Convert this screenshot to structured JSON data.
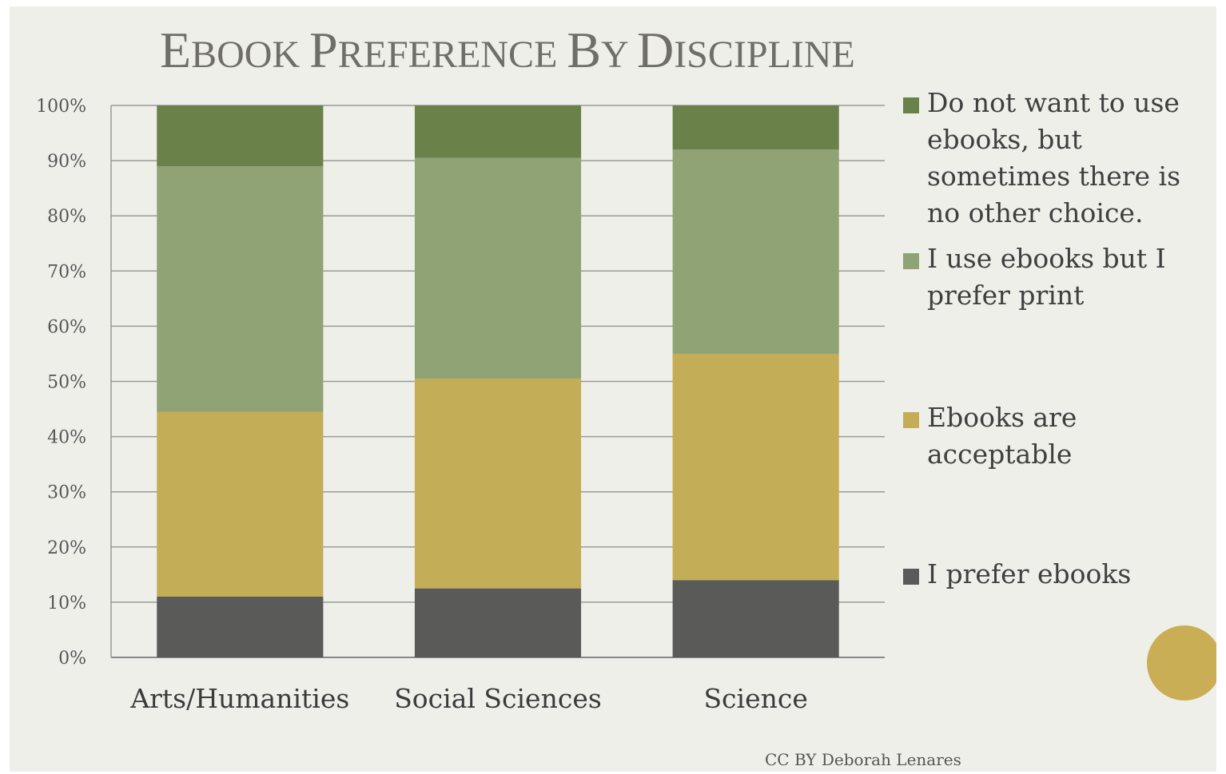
{
  "chart_data": {
    "type": "bar",
    "stacked": true,
    "title": "Ebook Preference by Discipline",
    "categories": [
      "Arts/Humanities",
      "Social Sciences",
      "Science"
    ],
    "y_ticks": [
      "0%",
      "10%",
      "20%",
      "30%",
      "40%",
      "50%",
      "60%",
      "70%",
      "80%",
      "90%",
      "100%"
    ],
    "ylim": [
      0,
      100
    ],
    "grid": true,
    "legend_position": "right",
    "series": [
      {
        "name": "I prefer ebooks",
        "color": "#5a5a58",
        "values": [
          11,
          12.5,
          14
        ]
      },
      {
        "name": "Ebooks are acceptable",
        "color": "#c4ad57",
        "values": [
          33.5,
          38,
          41
        ]
      },
      {
        "name": "I use ebooks but I prefer print",
        "color": "#8fa374",
        "values": [
          44.5,
          40,
          37
        ]
      },
      {
        "name": "Do not want to use ebooks, but sometimes there is no other choice.",
        "color": "#6a8149",
        "values": [
          11,
          9.5,
          8
        ]
      }
    ]
  },
  "credit": "CC BY Deborah Lenares",
  "accent_circle_color": "#c9ae55"
}
